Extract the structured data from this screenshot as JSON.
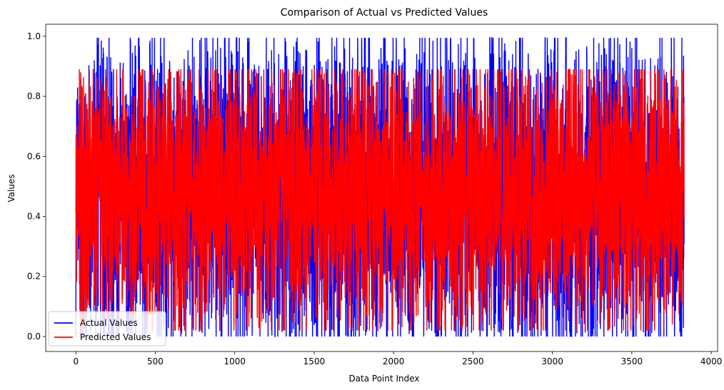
{
  "chart_data": {
    "type": "line",
    "title": "Comparison of Actual vs Predicted Values",
    "xlabel": "Data Point Index",
    "ylabel": "Values",
    "xlim": [
      -190,
      4040
    ],
    "ylim": [
      -0.05,
      1.04
    ],
    "xticks": [
      0,
      500,
      1000,
      1500,
      2000,
      2500,
      3000,
      3500,
      4000
    ],
    "xtick_labels": [
      "0",
      "500",
      "1000",
      "1500",
      "2000",
      "2500",
      "3000",
      "3500",
      "4000"
    ],
    "yticks": [
      0.0,
      0.2,
      0.4,
      0.6,
      0.8,
      1.0
    ],
    "ytick_labels": [
      "0.0",
      "0.2",
      "0.4",
      "0.6",
      "0.8",
      "1.0"
    ],
    "n_points": 3830,
    "legend_position": "lower-left",
    "series": [
      {
        "name": "Actual Values",
        "color": "#0000ff",
        "x_range": [
          0,
          3829
        ],
        "y_range": [
          0.0,
          0.995
        ],
        "noted_peaks": [
          {
            "x": 160,
            "y": 0.985
          },
          {
            "x": 1090,
            "y": 0.995
          },
          {
            "x": 1450,
            "y": 0.0
          },
          {
            "x": 1770,
            "y": 0.02
          },
          {
            "x": 3690,
            "y": 0.995
          }
        ]
      },
      {
        "name": "Predicted Values",
        "color": "#ff0000",
        "x_range": [
          0,
          3829
        ],
        "y_range": [
          0.02,
          0.89
        ],
        "noted_peaks": [
          {
            "x": 30,
            "y": 0.88
          },
          {
            "x": 1620,
            "y": 0.02
          },
          {
            "x": 2420,
            "y": 0.03
          }
        ]
      }
    ]
  }
}
